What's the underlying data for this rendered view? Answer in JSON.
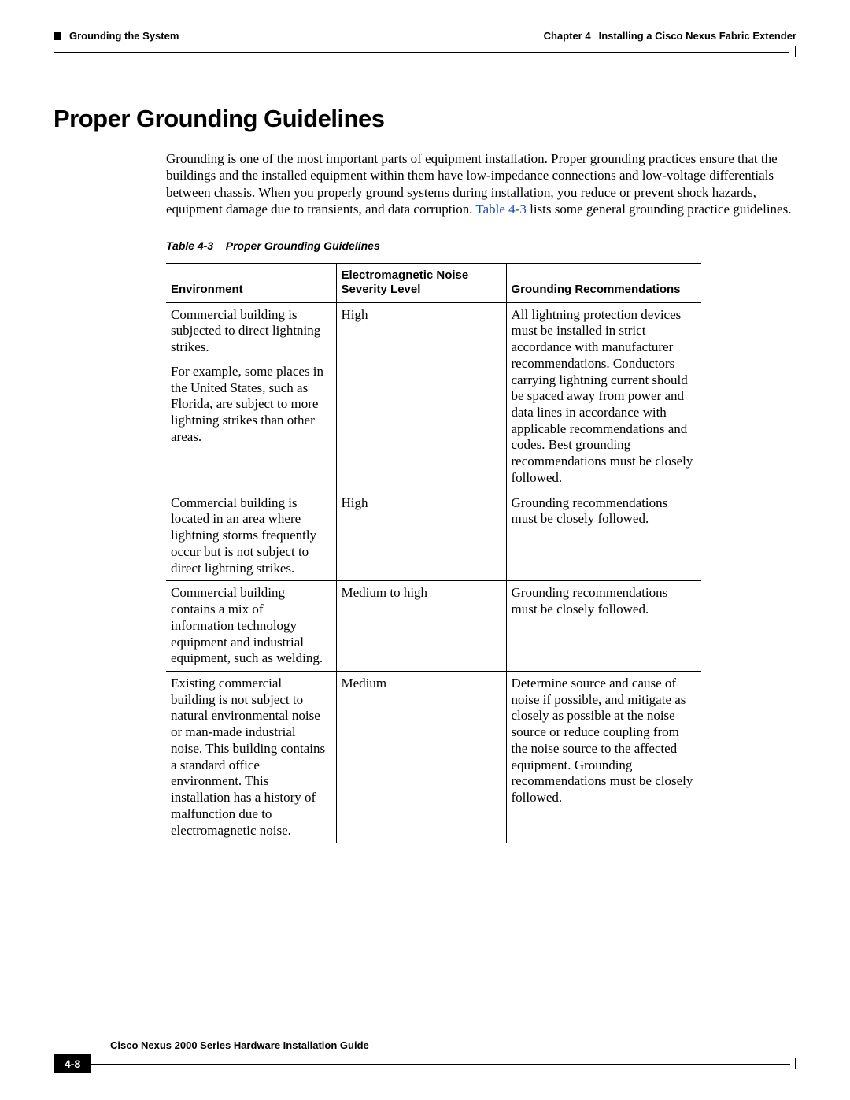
{
  "header": {
    "left_section": "Grounding the System",
    "right_chapter": "Chapter 4",
    "right_title": "Installing a Cisco Nexus Fabric Extender"
  },
  "heading": "Proper Grounding Guidelines",
  "intro": {
    "text_before_link": "Grounding is one of the most important parts of equipment installation. Proper grounding practices ensure that the buildings and the installed equipment within them have low-impedance connections and low-voltage differentials between chassis. When you properly ground systems during installation, you reduce or prevent shock hazards, equipment damage due to transients, and data corruption. ",
    "link_text": "Table 4-3",
    "text_after_link": " lists some general grounding practice guidelines."
  },
  "table": {
    "caption_label": "Table 4-3",
    "caption_title": "Proper Grounding Guidelines",
    "columns": [
      "Environment",
      "Electromagnetic Noise Severity Level",
      "Grounding Recommendations"
    ],
    "rows": [
      {
        "env_p1": "Commercial building is subjected to direct lightning strikes.",
        "env_p2": "For example, some places in the United States, such as Florida, are subject to more lightning strikes than other areas.",
        "level": "High",
        "rec": "All lightning protection devices must be installed in strict accordance with manufacturer recommendations. Conductors carrying lightning current should be spaced away from power and data lines in accordance with applicable recommendations and codes. Best grounding recommendations must be closely followed."
      },
      {
        "env_p1": "Commercial building is located in an area where lightning storms frequently occur but is not subject to direct lightning strikes.",
        "env_p2": "",
        "level": "High",
        "rec": "Grounding recommendations must be closely followed."
      },
      {
        "env_p1": "Commercial building contains a mix of information technology equipment and industrial equipment, such as welding.",
        "env_p2": "",
        "level": "Medium to high",
        "rec": "Grounding recommendations must be closely followed."
      },
      {
        "env_p1": "Existing commercial building is not subject to natural environmental noise or man-made industrial noise. This building contains a standard office environment. This installation has a history of malfunction due to electromagnetic noise.",
        "env_p2": "",
        "level": "Medium",
        "rec": "Determine source and cause of noise if possible, and mitigate as closely as possible at the noise source or reduce coupling from the noise source to the affected equipment. Grounding recommendations must be closely followed."
      }
    ]
  },
  "footer": {
    "guide_title": "Cisco Nexus 2000 Series Hardware Installation Guide",
    "page_number": "4-8"
  }
}
